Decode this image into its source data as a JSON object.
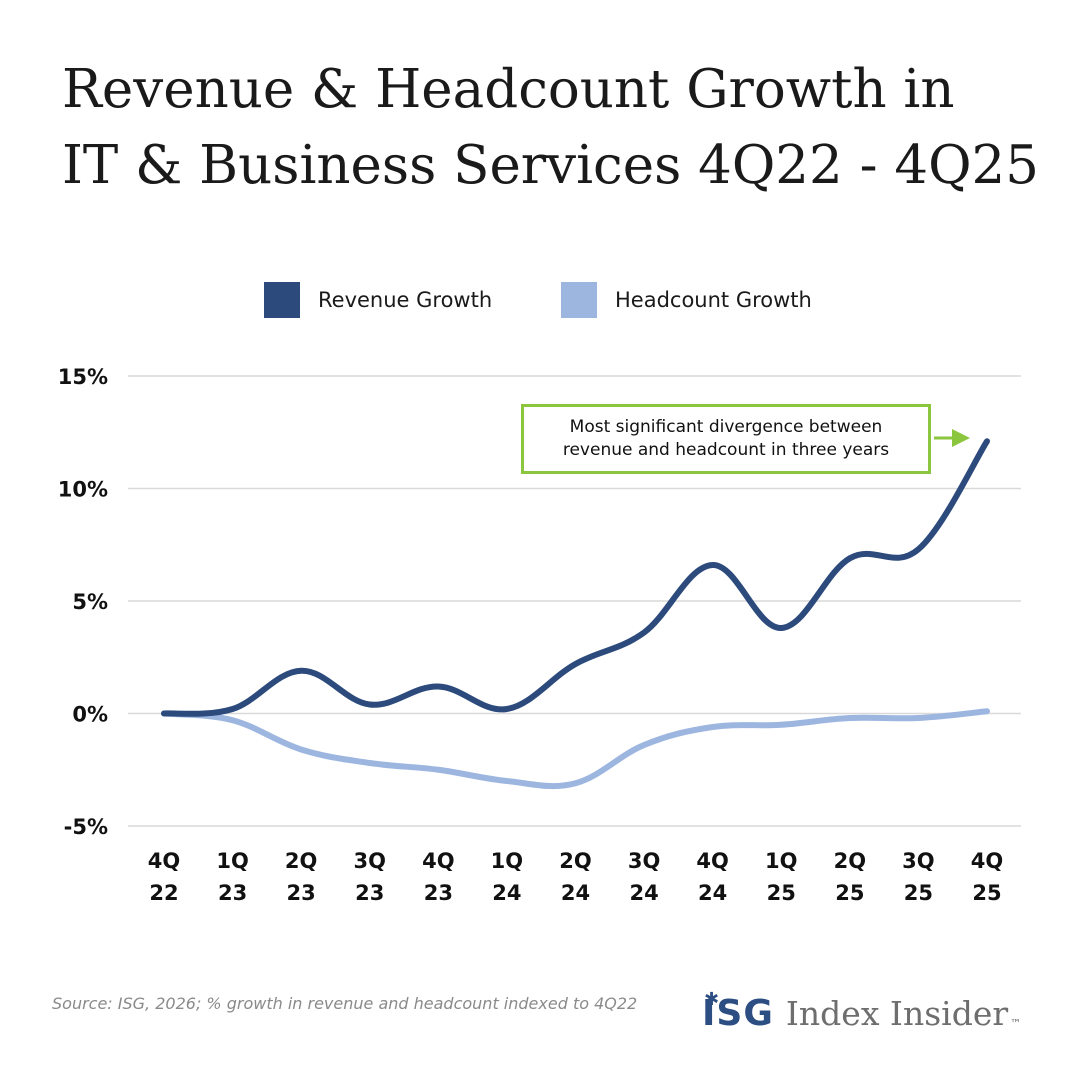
{
  "title_line1": "Revenue & Headcount Growth in",
  "title_line2": "IT & Business Services 4Q22 - 4Q25",
  "callout": {
    "line1": "Most significant divergence between",
    "line2": "revenue and headcount in three years"
  },
  "source": "Source: ISG, 2026; % growth in revenue and headcount indexed to 4Q22",
  "logo": {
    "mark": "ISG",
    "text": "Index Insider",
    "tm": "™"
  },
  "colors": {
    "revenue": "#2c4a7c",
    "headcount": "#9db6e0",
    "callout_border": "#8cc63f",
    "grid": "#d9d9d9"
  },
  "chart_data": {
    "type": "line",
    "title": "Revenue & Headcount Growth in IT & Business Services 4Q22 - 4Q25",
    "categories": [
      [
        "4Q",
        "22"
      ],
      [
        "1Q",
        "23"
      ],
      [
        "2Q",
        "23"
      ],
      [
        "3Q",
        "23"
      ],
      [
        "4Q",
        "23"
      ],
      [
        "1Q",
        "24"
      ],
      [
        "2Q",
        "24"
      ],
      [
        "3Q",
        "24"
      ],
      [
        "4Q",
        "24"
      ],
      [
        "1Q",
        "25"
      ],
      [
        "2Q",
        "25"
      ],
      [
        "3Q",
        "25"
      ],
      [
        "4Q",
        "25"
      ]
    ],
    "series": [
      {
        "name": "Revenue Growth",
        "values": [
          0,
          0.2,
          1.9,
          0.4,
          1.2,
          0.2,
          2.2,
          3.6,
          6.6,
          3.8,
          6.9,
          7.3,
          12.1
        ]
      },
      {
        "name": "Headcount Growth",
        "values": [
          0,
          -0.3,
          -1.6,
          -2.2,
          -2.5,
          -3.0,
          -3.1,
          -1.4,
          -0.6,
          -0.5,
          -0.2,
          -0.2,
          0.1
        ]
      }
    ],
    "ylim": [
      -5,
      15
    ],
    "yticks": [
      -5,
      0,
      5,
      10,
      15
    ],
    "ytick_labels": [
      "-5%",
      "0%",
      "5%",
      "10%",
      "15%"
    ],
    "grid": true,
    "legend_position": "top-center"
  }
}
